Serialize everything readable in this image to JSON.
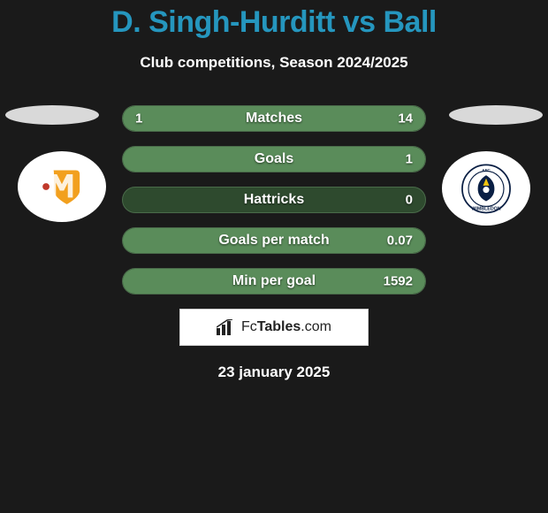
{
  "title": "D. Singh-Hurditt vs Ball",
  "subtitle": "Club competitions, Season 2024/2025",
  "date": "23 january 2025",
  "title_color": "#2596be",
  "background_color": "#1a1a1a",
  "bar_track_color": "#2e4a2e",
  "bar_fill_color": "#5a8c5a",
  "bar_border_color": "#4a6b4a",
  "logobox_bg": "#ffffff",
  "logobox_text": "FcTables.com",
  "side_ellipse_color": "#d9d9d9",
  "crest_left": {
    "bg": "#ffffff",
    "shield_fill": "#f2a01e",
    "shield_stroke": "#ffffff",
    "dot_color": "#c0392b"
  },
  "crest_right": {
    "bg": "#ffffff",
    "ring_color": "#0a1f44",
    "eagle_color": "#0a1f44",
    "accent_color": "#f1c40f",
    "text": "WIMBLEDON"
  },
  "stats": [
    {
      "label": "Matches",
      "left_val": "1",
      "right_val": "14",
      "left_pct": 6.7,
      "right_pct": 93.3
    },
    {
      "label": "Goals",
      "left_val": "",
      "right_val": "1",
      "left_pct": 0,
      "right_pct": 100
    },
    {
      "label": "Hattricks",
      "left_val": "",
      "right_val": "0",
      "left_pct": 0,
      "right_pct": 0
    },
    {
      "label": "Goals per match",
      "left_val": "",
      "right_val": "0.07",
      "left_pct": 0,
      "right_pct": 100
    },
    {
      "label": "Min per goal",
      "left_val": "",
      "right_val": "1592",
      "left_pct": 0,
      "right_pct": 100
    }
  ]
}
